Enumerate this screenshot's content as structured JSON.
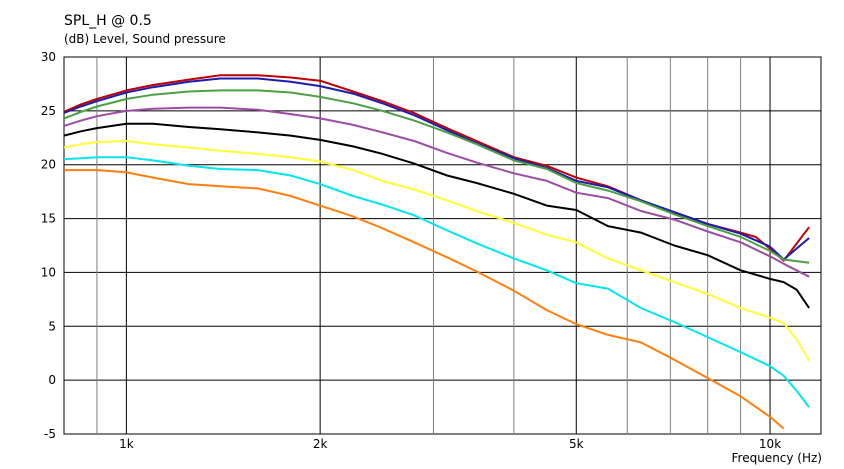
{
  "chart_data": {
    "type": "line",
    "title": "SPL_H @ 0.5",
    "ylabel": "(dB)  Level, Sound pressure",
    "xlabel": "Frequency  (Hz)",
    "x_scale": "log",
    "xlim": [
      800,
      12000
    ],
    "ylim": [
      -5,
      30
    ],
    "grid": true,
    "legend": "none",
    "yticks": [
      "30",
      "25",
      "20",
      "15",
      "10",
      "5",
      "0",
      "-5"
    ],
    "xticks": [
      {
        "value": 1000,
        "label": "1k"
      },
      {
        "value": 2000,
        "label": "2k"
      },
      {
        "value": 5000,
        "label": "5k"
      },
      {
        "value": 10000,
        "label": "10k"
      }
    ],
    "x_minor_grid": [
      900,
      3000,
      4000,
      6000,
      7000,
      8000,
      9000
    ],
    "series": [
      {
        "color": "#c00000",
        "points": [
          [
            800,
            24.9
          ],
          [
            850,
            25.6
          ],
          [
            900,
            26.1
          ],
          [
            1000,
            26.9
          ],
          [
            1100,
            27.4
          ],
          [
            1250,
            27.9
          ],
          [
            1400,
            28.3
          ],
          [
            1600,
            28.3
          ],
          [
            1800,
            28.1
          ],
          [
            2000,
            27.8
          ],
          [
            2250,
            26.8
          ],
          [
            2500,
            25.9
          ],
          [
            2800,
            24.8
          ],
          [
            3150,
            23.4
          ],
          [
            3500,
            22.2
          ],
          [
            4000,
            20.7
          ],
          [
            4500,
            19.9
          ],
          [
            5000,
            18.8
          ],
          [
            5600,
            18.0
          ],
          [
            6300,
            16.7
          ],
          [
            7100,
            15.5
          ],
          [
            8000,
            14.5
          ],
          [
            9000,
            13.7
          ],
          [
            9500,
            13.3
          ],
          [
            10000,
            12.2
          ],
          [
            10500,
            11.1
          ],
          [
            11500,
            14.2
          ]
        ]
      },
      {
        "color": "#1c1cb0",
        "points": [
          [
            800,
            24.8
          ],
          [
            850,
            25.4
          ],
          [
            900,
            25.9
          ],
          [
            1000,
            26.7
          ],
          [
            1100,
            27.2
          ],
          [
            1250,
            27.7
          ],
          [
            1400,
            28.0
          ],
          [
            1600,
            28.0
          ],
          [
            1800,
            27.7
          ],
          [
            2000,
            27.3
          ],
          [
            2250,
            26.6
          ],
          [
            2500,
            25.7
          ],
          [
            2800,
            24.6
          ],
          [
            3150,
            23.2
          ],
          [
            3500,
            22.0
          ],
          [
            4000,
            20.6
          ],
          [
            4500,
            19.7
          ],
          [
            5000,
            18.5
          ],
          [
            5600,
            17.9
          ],
          [
            6300,
            16.7
          ],
          [
            7100,
            15.6
          ],
          [
            8000,
            14.5
          ],
          [
            9000,
            13.6
          ],
          [
            10000,
            12.4
          ],
          [
            10500,
            11.2
          ],
          [
            11500,
            13.2
          ]
        ]
      },
      {
        "color": "#4aa043",
        "points": [
          [
            800,
            24.3
          ],
          [
            850,
            24.9
          ],
          [
            900,
            25.4
          ],
          [
            1000,
            26.1
          ],
          [
            1100,
            26.5
          ],
          [
            1250,
            26.8
          ],
          [
            1400,
            26.9
          ],
          [
            1600,
            26.9
          ],
          [
            1800,
            26.7
          ],
          [
            2000,
            26.3
          ],
          [
            2250,
            25.7
          ],
          [
            2500,
            25.0
          ],
          [
            2800,
            24.1
          ],
          [
            3150,
            23.0
          ],
          [
            3500,
            21.9
          ],
          [
            4000,
            20.4
          ],
          [
            4500,
            19.6
          ],
          [
            5000,
            18.3
          ],
          [
            5600,
            17.6
          ],
          [
            6300,
            16.6
          ],
          [
            7100,
            15.4
          ],
          [
            8000,
            14.3
          ],
          [
            9000,
            13.3
          ],
          [
            10000,
            12.0
          ],
          [
            10500,
            11.2
          ],
          [
            11500,
            10.9
          ]
        ]
      },
      {
        "color": "#9b4da6",
        "points": [
          [
            800,
            23.6
          ],
          [
            850,
            24.1
          ],
          [
            900,
            24.5
          ],
          [
            1000,
            25.0
          ],
          [
            1100,
            25.2
          ],
          [
            1250,
            25.3
          ],
          [
            1400,
            25.3
          ],
          [
            1600,
            25.1
          ],
          [
            1800,
            24.7
          ],
          [
            2000,
            24.3
          ],
          [
            2250,
            23.7
          ],
          [
            2500,
            23.0
          ],
          [
            2800,
            22.2
          ],
          [
            3150,
            21.1
          ],
          [
            3500,
            20.2
          ],
          [
            4000,
            19.2
          ],
          [
            4500,
            18.5
          ],
          [
            5000,
            17.4
          ],
          [
            5600,
            16.9
          ],
          [
            6300,
            15.7
          ],
          [
            7100,
            14.9
          ],
          [
            8000,
            13.8
          ],
          [
            9000,
            12.8
          ],
          [
            10000,
            11.5
          ],
          [
            10500,
            10.8
          ],
          [
            11500,
            9.6
          ]
        ]
      },
      {
        "color": "#000000",
        "points": [
          [
            800,
            22.7
          ],
          [
            850,
            23.1
          ],
          [
            900,
            23.4
          ],
          [
            1000,
            23.8
          ],
          [
            1100,
            23.8
          ],
          [
            1250,
            23.5
          ],
          [
            1400,
            23.3
          ],
          [
            1600,
            23.0
          ],
          [
            1800,
            22.7
          ],
          [
            2000,
            22.3
          ],
          [
            2250,
            21.7
          ],
          [
            2500,
            21.0
          ],
          [
            2800,
            20.1
          ],
          [
            3150,
            19.0
          ],
          [
            3500,
            18.3
          ],
          [
            4000,
            17.3
          ],
          [
            4500,
            16.2
          ],
          [
            5000,
            15.8
          ],
          [
            5600,
            14.3
          ],
          [
            6300,
            13.7
          ],
          [
            7100,
            12.5
          ],
          [
            8000,
            11.6
          ],
          [
            9000,
            10.2
          ],
          [
            10000,
            9.4
          ],
          [
            10500,
            9.1
          ],
          [
            11000,
            8.4
          ],
          [
            11500,
            6.7
          ]
        ]
      },
      {
        "color": "#ffff33",
        "points": [
          [
            800,
            21.6
          ],
          [
            850,
            21.9
          ],
          [
            900,
            22.1
          ],
          [
            1000,
            22.2
          ],
          [
            1100,
            21.9
          ],
          [
            1250,
            21.6
          ],
          [
            1400,
            21.3
          ],
          [
            1600,
            21.0
          ],
          [
            1800,
            20.7
          ],
          [
            2000,
            20.3
          ],
          [
            2250,
            19.5
          ],
          [
            2500,
            18.5
          ],
          [
            2800,
            17.7
          ],
          [
            3150,
            16.7
          ],
          [
            3500,
            15.7
          ],
          [
            4000,
            14.6
          ],
          [
            4500,
            13.5
          ],
          [
            5000,
            12.8
          ],
          [
            5600,
            11.3
          ],
          [
            6300,
            10.2
          ],
          [
            7100,
            9.1
          ],
          [
            8000,
            8.0
          ],
          [
            9000,
            6.7
          ],
          [
            10000,
            5.8
          ],
          [
            10500,
            5.3
          ],
          [
            11000,
            3.8
          ],
          [
            11500,
            1.8
          ]
        ]
      },
      {
        "color": "#00e5ee",
        "points": [
          [
            800,
            20.5
          ],
          [
            850,
            20.6
          ],
          [
            900,
            20.7
          ],
          [
            1000,
            20.7
          ],
          [
            1100,
            20.4
          ],
          [
            1250,
            19.9
          ],
          [
            1400,
            19.6
          ],
          [
            1600,
            19.5
          ],
          [
            1800,
            19.0
          ],
          [
            2000,
            18.2
          ],
          [
            2250,
            17.1
          ],
          [
            2500,
            16.3
          ],
          [
            2800,
            15.3
          ],
          [
            3150,
            13.9
          ],
          [
            3500,
            12.7
          ],
          [
            4000,
            11.3
          ],
          [
            4500,
            10.2
          ],
          [
            5000,
            9.0
          ],
          [
            5600,
            8.5
          ],
          [
            6300,
            6.7
          ],
          [
            7100,
            5.4
          ],
          [
            8000,
            4.0
          ],
          [
            9000,
            2.6
          ],
          [
            10000,
            1.3
          ],
          [
            10500,
            0.4
          ],
          [
            11000,
            -1.0
          ],
          [
            11500,
            -2.5
          ]
        ]
      },
      {
        "color": "#ff7f0e",
        "points": [
          [
            800,
            19.5
          ],
          [
            850,
            19.5
          ],
          [
            900,
            19.5
          ],
          [
            1000,
            19.3
          ],
          [
            1100,
            18.8
          ],
          [
            1250,
            18.2
          ],
          [
            1400,
            18.0
          ],
          [
            1600,
            17.8
          ],
          [
            1800,
            17.1
          ],
          [
            2000,
            16.2
          ],
          [
            2250,
            15.2
          ],
          [
            2500,
            14.1
          ],
          [
            2800,
            12.8
          ],
          [
            3150,
            11.4
          ],
          [
            3500,
            10.1
          ],
          [
            4000,
            8.3
          ],
          [
            4500,
            6.5
          ],
          [
            5000,
            5.2
          ],
          [
            5600,
            4.2
          ],
          [
            6300,
            3.5
          ],
          [
            7100,
            1.9
          ],
          [
            8000,
            0.2
          ],
          [
            9000,
            -1.5
          ],
          [
            10000,
            -3.4
          ],
          [
            10500,
            -4.5
          ]
        ]
      }
    ]
  }
}
